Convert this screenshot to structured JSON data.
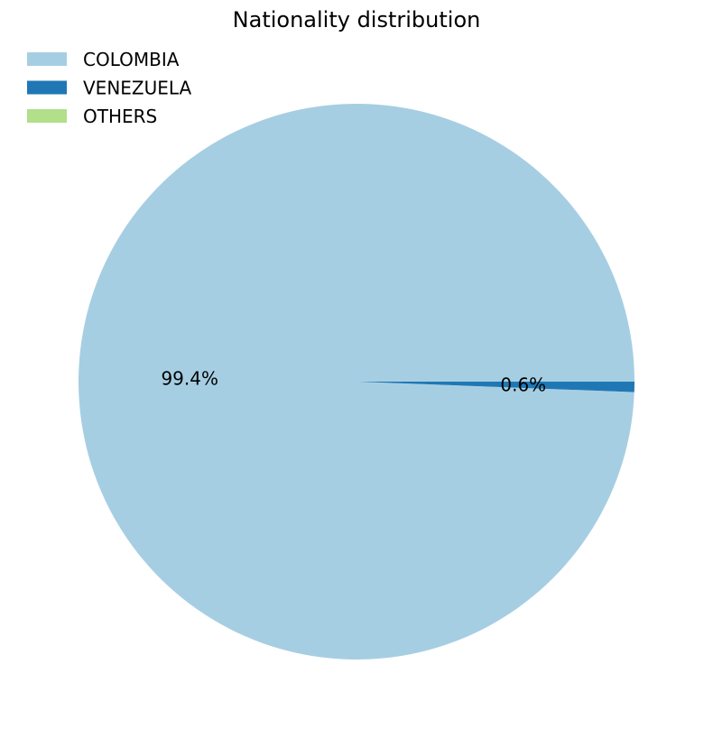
{
  "chart_data": {
    "type": "pie",
    "title": "Nationality distribution",
    "legend_position": "top-left",
    "series": [
      {
        "name": "COLOMBIA",
        "value": 99.4,
        "label": "99.4%",
        "color": "#a6cee3"
      },
      {
        "name": "VENEZUELA",
        "value": 0.6,
        "label": "0.6%",
        "color": "#1f78b4"
      },
      {
        "name": "OTHERS",
        "value": 0.0,
        "label": "",
        "color": "#b2df8a"
      }
    ]
  }
}
